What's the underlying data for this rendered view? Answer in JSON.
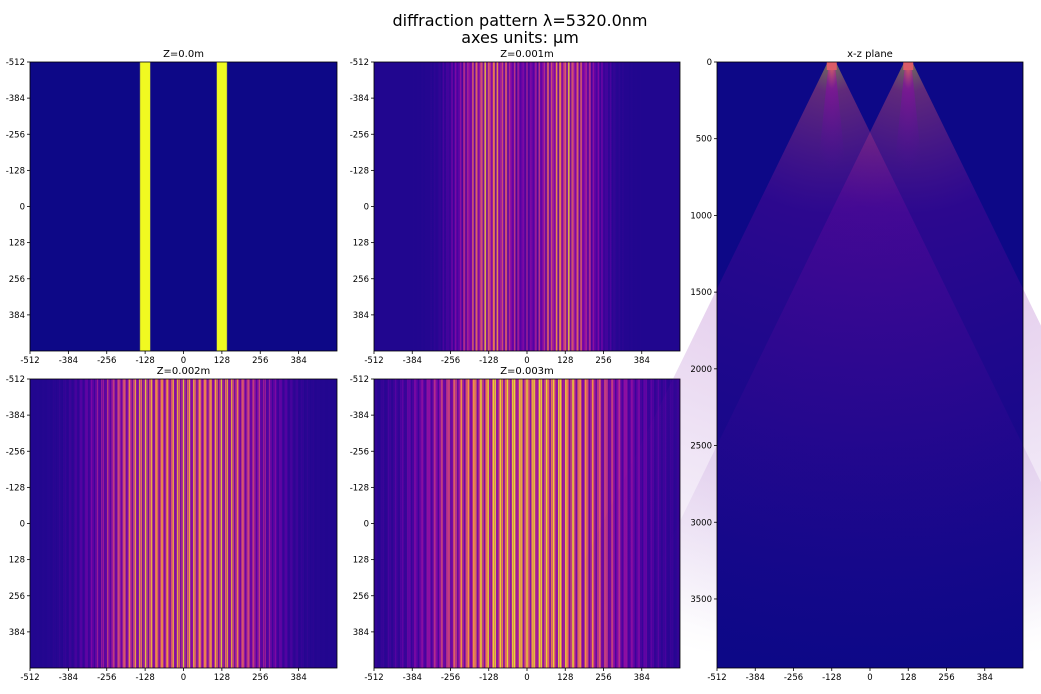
{
  "figure": {
    "title_line1": "diffraction pattern λ=5320.0nm",
    "title_line2": "axes units: μm"
  },
  "colormap": [
    "#0d0887",
    "#5402a3",
    "#8b0aa5",
    "#b93289",
    "#db5c68",
    "#f48849",
    "#febd2a",
    "#f0f921"
  ],
  "chart_data": [
    {
      "type": "heatmap",
      "title": "Z=0.0m",
      "z_m": 0.0,
      "xticks": [
        -512,
        -384,
        -256,
        -128,
        0,
        128,
        256,
        384
      ],
      "yticks": [
        -512,
        -384,
        -256,
        -128,
        0,
        128,
        256,
        384
      ],
      "xlim": [
        -512,
        512
      ],
      "ylim": [
        512,
        -512
      ],
      "pattern": "two rectangular slits",
      "slit_centers": [
        -128,
        128
      ],
      "slit_width": 32
    },
    {
      "type": "heatmap",
      "title": "Z=0.001m",
      "z_m": 0.001,
      "xticks": [
        -512,
        -384,
        -256,
        -128,
        0,
        128,
        256,
        384
      ],
      "yticks": [
        -512,
        -384,
        -256,
        -128,
        0,
        128,
        256,
        384
      ],
      "xlim": [
        -512,
        512
      ],
      "ylim": [
        512,
        -512
      ]
    },
    {
      "type": "heatmap",
      "title": "Z=0.002m",
      "z_m": 0.002,
      "xticks": [
        -512,
        -384,
        -256,
        -128,
        0,
        128,
        256,
        384
      ],
      "yticks": [
        -512,
        -384,
        -256,
        -128,
        0,
        128,
        256,
        384
      ],
      "xlim": [
        -512,
        512
      ],
      "ylim": [
        512,
        -512
      ]
    },
    {
      "type": "heatmap",
      "title": "Z=0.003m",
      "z_m": 0.003,
      "xticks": [
        -512,
        -384,
        -256,
        -128,
        0,
        128,
        256,
        384
      ],
      "yticks": [
        -512,
        -384,
        -256,
        -128,
        0,
        128,
        256,
        384
      ],
      "xlim": [
        -512,
        512
      ],
      "ylim": [
        512,
        -512
      ]
    },
    {
      "type": "heatmap",
      "title": "x-z plane",
      "xticks": [
        -512,
        -384,
        -256,
        -128,
        0,
        128,
        256,
        384
      ],
      "yticks": [
        0,
        500,
        1000,
        1500,
        2000,
        2500,
        3000,
        3500
      ],
      "xlim": [
        -512,
        512
      ],
      "ylim": [
        3950,
        0
      ]
    }
  ]
}
